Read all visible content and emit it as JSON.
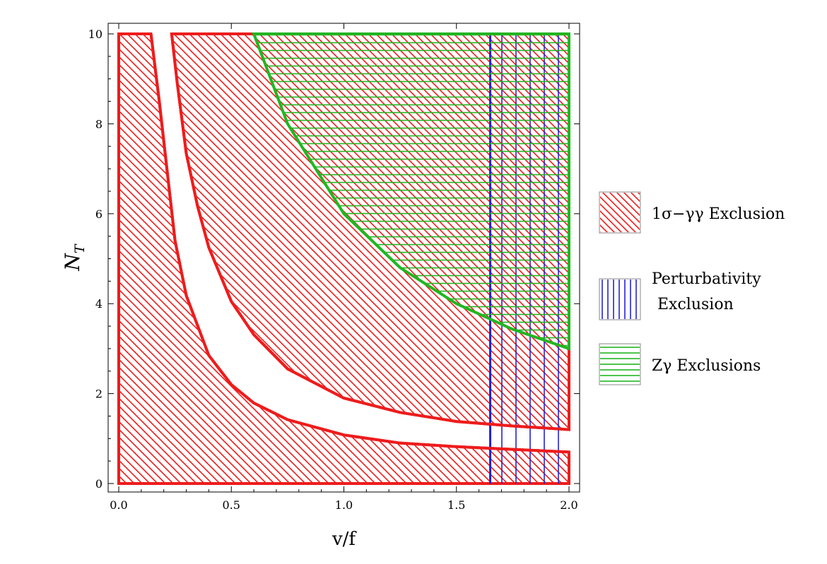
{
  "chart_data": {
    "type": "area",
    "xlabel": "v/f",
    "ylabel": "N",
    "ylabel_subscript": "T",
    "xlim": [
      0,
      2
    ],
    "ylim": [
      0,
      10
    ],
    "x_ticks": [
      "0.0",
      "0.5",
      "1.0",
      "1.5",
      "2.0"
    ],
    "y_ticks": [
      "0",
      "2",
      "4",
      "6",
      "8",
      "10"
    ],
    "legend_position": "right",
    "colors": {
      "gamma_gamma": "#ee1c1c",
      "perturbativity": "#2323d6",
      "z_gamma": "#22b522"
    },
    "series": [
      {
        "key": "gg_lower",
        "name": "1σ−γγ Exclusion",
        "region": "below lower curve",
        "boundary_x": [
          0.143,
          0.18,
          0.25,
          0.3,
          0.4,
          0.5,
          0.6,
          0.75,
          1.0,
          1.25,
          1.5,
          1.75,
          2.0
        ],
        "boundary_y": [
          10,
          8.5,
          5.4,
          4.18,
          2.85,
          2.2,
          1.79,
          1.42,
          1.08,
          0.9,
          0.82,
          0.76,
          0.7
        ]
      },
      {
        "key": "gg_upper",
        "name": "1σ−γγ Exclusion",
        "region": "above upper curve",
        "boundary_x": [
          0.235,
          0.26,
          0.3,
          0.35,
          0.4,
          0.5,
          0.6,
          0.75,
          1.0,
          1.25,
          1.5,
          1.75,
          2.0
        ],
        "boundary_y": [
          10,
          8.9,
          7.34,
          6.17,
          5.25,
          4.05,
          3.31,
          2.55,
          1.9,
          1.58,
          1.38,
          1.28,
          1.2
        ]
      },
      {
        "key": "perturbativity",
        "name": "Perturbativity Exclusion",
        "region": "v/f ≥ 1.65",
        "x_min": 1.65
      },
      {
        "key": "z_gamma",
        "name": "Zγ Exclusions",
        "region": "above curve",
        "boundary_x": [
          0.6,
          0.75,
          1.0,
          1.25,
          1.5,
          1.75,
          2.0
        ],
        "boundary_y": [
          10,
          8.0,
          6.0,
          4.8,
          4.0,
          3.43,
          3.0
        ]
      }
    ],
    "legend": [
      {
        "key": "gamma_gamma",
        "pattern": "diagonal",
        "lines": [
          "1σ−γγ Exclusion"
        ]
      },
      {
        "key": "perturbativity",
        "pattern": "vertical",
        "lines": [
          "Perturbativity",
          "Exclusion"
        ]
      },
      {
        "key": "z_gamma",
        "pattern": "horizontal",
        "lines": [
          "Zγ Exclusions"
        ]
      }
    ]
  }
}
